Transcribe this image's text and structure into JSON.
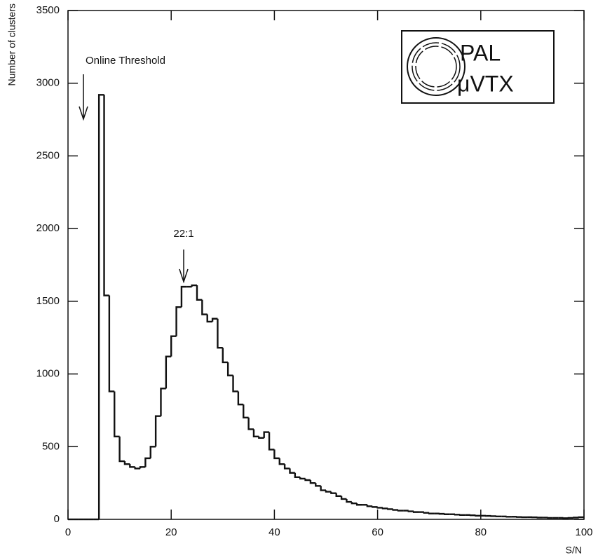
{
  "chart_data": {
    "type": "histogram",
    "y_label": "Number of clusters",
    "x_label": "S/N",
    "annotations": [
      "Online Threshold",
      "22:1"
    ],
    "logo_text": [
      "PAL",
      "μVTX"
    ],
    "bins": [
      0,
      1,
      2,
      3,
      4,
      5,
      6,
      7,
      8,
      9,
      10,
      11,
      12,
      13,
      14,
      15,
      16,
      17,
      18,
      19,
      20,
      21,
      22,
      23,
      24,
      25,
      26,
      27,
      28,
      29,
      30,
      31,
      32,
      33,
      34,
      35,
      36,
      37,
      38,
      39,
      40,
      41,
      42,
      43,
      44,
      45,
      46,
      47,
      48,
      49,
      50,
      51,
      52,
      53,
      54,
      55,
      56,
      57,
      58,
      59,
      60,
      61,
      62,
      63,
      64,
      65,
      66,
      67,
      68,
      69,
      70,
      71,
      72,
      73,
      74,
      75,
      76,
      77,
      78,
      79,
      80,
      81,
      82,
      83,
      84,
      85,
      86,
      87,
      88,
      89,
      90,
      91,
      92,
      93,
      94,
      95,
      96,
      97,
      98,
      99,
      100
    ],
    "counts": [
      0,
      0,
      0,
      0,
      0,
      0,
      2920,
      1540,
      880,
      570,
      400,
      380,
      360,
      350,
      360,
      420,
      500,
      710,
      900,
      1120,
      1260,
      1460,
      1600,
      1600,
      1610,
      1510,
      1410,
      1360,
      1380,
      1180,
      1080,
      990,
      880,
      790,
      700,
      620,
      570,
      560,
      600,
      480,
      420,
      380,
      350,
      320,
      290,
      280,
      270,
      250,
      230,
      200,
      190,
      180,
      160,
      140,
      120,
      110,
      100,
      100,
      90,
      85,
      80,
      75,
      70,
      65,
      60,
      60,
      55,
      50,
      50,
      45,
      40,
      40,
      38,
      35,
      35,
      32,
      30,
      30,
      28,
      25,
      25,
      24,
      22,
      20,
      20,
      18,
      18,
      16,
      15,
      15,
      14,
      12,
      12,
      10,
      10,
      10,
      8,
      10,
      12,
      15
    ],
    "color": "#111111",
    "xlim": [
      0,
      100
    ],
    "xticks": [
      0,
      20,
      40,
      60,
      80,
      100
    ],
    "ylim": [
      0,
      3500
    ],
    "yticks": [
      0,
      500,
      1000,
      1500,
      2000,
      2500,
      3000,
      3500
    ],
    "grid": false
  }
}
